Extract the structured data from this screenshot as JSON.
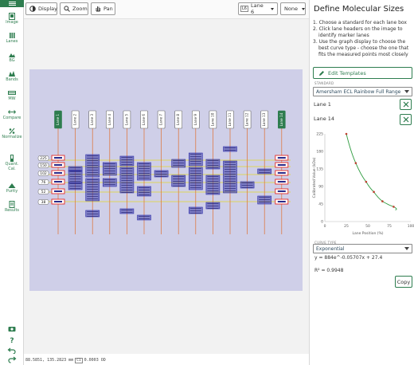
{
  "toolbar": {
    "display_label": "Display",
    "zoom_label": "Zoom",
    "pan_label": "Pan",
    "lane_badge": "L6",
    "lane_select": "Lane 6",
    "overlay_select": "None"
  },
  "sidebar": {
    "items": [
      {
        "label": "Image",
        "icon": "image-icon"
      },
      {
        "label": "Lanes",
        "icon": "lanes-icon"
      },
      {
        "label": "BG",
        "icon": "background-icon"
      },
      {
        "label": "Bands",
        "icon": "bands-icon"
      },
      {
        "label": "MW",
        "icon": "molecular-weight-icon"
      },
      {
        "label": "Compare",
        "icon": "compare-icon"
      },
      {
        "label": "Normalize",
        "icon": "normalize-icon"
      },
      {
        "label": "Quant. Cal.",
        "icon": "quant-calibration-icon"
      },
      {
        "label": "Purity",
        "icon": "purity-icon"
      },
      {
        "label": "Results",
        "icon": "results-icon"
      }
    ],
    "footer_icons": [
      "camera-icon",
      "help-icon",
      "undo-icon",
      "redo-icon"
    ]
  },
  "gel": {
    "lane_labels": [
      "Lane 1",
      "Lane 2",
      "Lane 3",
      "Lane 4",
      "Lane 5",
      "Lane 6",
      "Lane 7",
      "Lane 8",
      "Lane 9",
      "Lane 10",
      "Lane 11",
      "Lane 12",
      "Lane 13",
      "Lane 14"
    ],
    "marker_sizes": [
      "225",
      "150",
      "102",
      "76",
      "52",
      "38"
    ],
    "selected_lanes": [
      "Lane 1",
      "Lane 14"
    ]
  },
  "status": {
    "coords": "88.5851, 135.2823 mm",
    "c1_label": "C1",
    "value": "0.0003 OD"
  },
  "panel": {
    "title": "Define Molecular Sizes",
    "steps": [
      "1. Choose a standard for each lane box",
      "2. Click lane headers on the image to identify marker lanes",
      "3. Use the graph display to choose the best curve type - choose the one that fits the measured points most closely"
    ],
    "edit_templates_label": "Edit Templates",
    "standard_label": "STANDARD",
    "standard_value": "Amersham ECL Rainbow Full Range",
    "lanes": [
      "Lane 1",
      "Lane 14"
    ],
    "curve_type_label": "CURVE TYPE",
    "curve_type_value": "Exponential",
    "equation": "y = 884e^-0.05707x + 27.4",
    "r_squared": "R² = 0.9948",
    "copy_label": "Copy"
  },
  "chart_data": {
    "type": "scatter",
    "xlabel": "Lane Position (%)",
    "ylabel": "Calibrated Value (kDa)",
    "x_ticks": [
      "0",
      "25",
      "50",
      "75",
      "100"
    ],
    "y_ticks": [
      "0",
      "45",
      "90",
      "135",
      "180",
      "225"
    ],
    "xlim": [
      0,
      100
    ],
    "ylim": [
      0,
      225
    ],
    "points": [
      {
        "x": 25,
        "y": 225
      },
      {
        "x": 36,
        "y": 150
      },
      {
        "x": 48,
        "y": 102
      },
      {
        "x": 57,
        "y": 76
      },
      {
        "x": 67,
        "y": 52
      },
      {
        "x": 80,
        "y": 38
      }
    ],
    "fit": {
      "type": "exponential",
      "a": 884,
      "b": -0.05707,
      "c": 27.4
    },
    "point_color": "#c04030",
    "fit_color": "#2e9b3f"
  },
  "colors": {
    "accent": "#2e7d4f",
    "lane_line": "#e07030",
    "band_box": "#2a2aa8",
    "marker_box": "#e02828",
    "guide_line": "#e8d800"
  }
}
